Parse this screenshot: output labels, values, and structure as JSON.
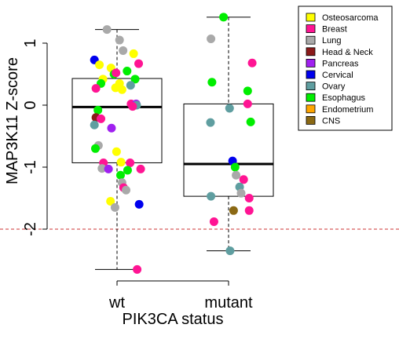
{
  "chart_data": {
    "type": "boxplot-with-jitter",
    "xlabel": "PIK3CA status",
    "ylabel": "MAP3K11 Z-score",
    "ylim": [
      -2.7,
      1.55
    ],
    "yticks": [
      1,
      0,
      -1,
      -2
    ],
    "reference_line": {
      "y": -2,
      "color": "#cc3333",
      "style": "dashed"
    },
    "categories": [
      "wt",
      "mutant"
    ],
    "boxes": [
      {
        "category": "wt",
        "whisker_low": -2.65,
        "q1": -0.93,
        "median": -0.03,
        "q3": 0.43,
        "whisker_high": 1.22
      },
      {
        "category": "mutant",
        "whisker_low": -2.35,
        "q1": -1.47,
        "median": -0.95,
        "q3": 0.02,
        "whisker_high": 1.42
      }
    ],
    "legend": [
      {
        "label": "Osteosarcoma",
        "color": "#ffff00"
      },
      {
        "label": "Breast",
        "color": "#ff1493"
      },
      {
        "label": "Lung",
        "color": "#a9a9a9"
      },
      {
        "label": "Head & Neck",
        "color": "#8b1a1a"
      },
      {
        "label": "Pancreas",
        "color": "#a020f0"
      },
      {
        "label": "Cervical",
        "color": "#0000ee"
      },
      {
        "label": "Ovary",
        "color": "#5f9ea0"
      },
      {
        "label": "Esophagus",
        "color": "#00ee00"
      },
      {
        "label": "Endometrium",
        "color": "#ffa500"
      },
      {
        "label": "CNS",
        "color": "#8b6914"
      }
    ],
    "points": [
      {
        "group": "wt",
        "type": "Lung",
        "jitter": -0.2,
        "y": 1.22
      },
      {
        "group": "wt",
        "type": "Lung",
        "jitter": 0.05,
        "y": 1.05
      },
      {
        "group": "wt",
        "type": "Lung",
        "jitter": 0.12,
        "y": 0.88
      },
      {
        "group": "wt",
        "type": "Osteosarcoma",
        "jitter": 0.33,
        "y": 0.83
      },
      {
        "group": "wt",
        "type": "Cervical",
        "jitter": -0.45,
        "y": 0.73
      },
      {
        "group": "wt",
        "type": "Osteosarcoma",
        "jitter": -0.35,
        "y": 0.65
      },
      {
        "group": "wt",
        "type": "Breast",
        "jitter": 0.43,
        "y": 0.67
      },
      {
        "group": "wt",
        "type": "Osteosarcoma",
        "jitter": -0.12,
        "y": 0.6
      },
      {
        "group": "wt",
        "type": "Esophagus",
        "jitter": 0.2,
        "y": 0.55
      },
      {
        "group": "wt",
        "type": "Esophagus",
        "jitter": -0.06,
        "y": 0.5
      },
      {
        "group": "wt",
        "type": "Breast",
        "jitter": -0.02,
        "y": 0.52
      },
      {
        "group": "wt",
        "type": "Esophagus",
        "jitter": 0.36,
        "y": 0.42
      },
      {
        "group": "wt",
        "type": "Osteosarcoma",
        "jitter": -0.28,
        "y": 0.42
      },
      {
        "group": "wt",
        "type": "Esophagus",
        "jitter": -0.32,
        "y": 0.35
      },
      {
        "group": "wt",
        "type": "Osteosarcoma",
        "jitter": 0.05,
        "y": 0.35
      },
      {
        "group": "wt",
        "type": "Ovary",
        "jitter": 0.27,
        "y": 0.32
      },
      {
        "group": "wt",
        "type": "Osteosarcoma",
        "jitter": -0.03,
        "y": 0.28
      },
      {
        "group": "wt",
        "type": "Breast",
        "jitter": -0.42,
        "y": 0.27
      },
      {
        "group": "wt",
        "type": "Osteosarcoma",
        "jitter": 0.1,
        "y": 0.25
      },
      {
        "group": "wt",
        "type": "Breast",
        "jitter": 0.28,
        "y": 0.02
      },
      {
        "group": "wt",
        "type": "Pancreas",
        "jitter": 0.38,
        "y": 0.02
      },
      {
        "group": "wt",
        "type": "Ovary",
        "jitter": 0.39,
        "y": 0.0
      },
      {
        "group": "wt",
        "type": "Breast",
        "jitter": 0.31,
        "y": -0.02
      },
      {
        "group": "wt",
        "type": "Esophagus",
        "jitter": -0.38,
        "y": -0.08
      },
      {
        "group": "wt",
        "type": "Head & Neck",
        "jitter": -0.42,
        "y": -0.2
      },
      {
        "group": "wt",
        "type": "Breast",
        "jitter": -0.32,
        "y": -0.22
      },
      {
        "group": "wt",
        "type": "Ovary",
        "jitter": -0.45,
        "y": -0.32
      },
      {
        "group": "wt",
        "type": "Pancreas",
        "jitter": -0.11,
        "y": -0.37
      },
      {
        "group": "wt",
        "type": "Lung",
        "jitter": -0.37,
        "y": -0.65
      },
      {
        "group": "wt",
        "type": "Osteosarcoma",
        "jitter": -0.01,
        "y": -0.75
      },
      {
        "group": "wt",
        "type": "Esophagus",
        "jitter": -0.43,
        "y": -0.7
      },
      {
        "group": "wt",
        "type": "Osteosarcoma",
        "jitter": 0.08,
        "y": -0.92
      },
      {
        "group": "wt",
        "type": "Breast",
        "jitter": -0.27,
        "y": -0.93
      },
      {
        "group": "wt",
        "type": "Breast",
        "jitter": 0.26,
        "y": -0.93
      },
      {
        "group": "wt",
        "type": "Lung",
        "jitter": -0.3,
        "y": -1.02
      },
      {
        "group": "wt",
        "type": "Esophagus",
        "jitter": 0.21,
        "y": -1.05
      },
      {
        "group": "wt",
        "type": "Pancreas",
        "jitter": -0.17,
        "y": -1.03
      },
      {
        "group": "wt",
        "type": "Breast",
        "jitter": 0.47,
        "y": -1.03
      },
      {
        "group": "wt",
        "type": "Esophagus",
        "jitter": 0.07,
        "y": -1.13
      },
      {
        "group": "wt",
        "type": "Lung",
        "jitter": 0.1,
        "y": -1.25
      },
      {
        "group": "wt",
        "type": "Breast",
        "jitter": 0.13,
        "y": -1.33
      },
      {
        "group": "wt",
        "type": "Lung",
        "jitter": 0.18,
        "y": -1.37
      },
      {
        "group": "wt",
        "type": "Osteosarcoma",
        "jitter": -0.13,
        "y": -1.55
      },
      {
        "group": "wt",
        "type": "Lung",
        "jitter": -0.04,
        "y": -1.65
      },
      {
        "group": "wt",
        "type": "Cervical",
        "jitter": 0.44,
        "y": -1.6
      },
      {
        "group": "wt",
        "type": "Breast",
        "jitter": 0.4,
        "y": -2.65
      },
      {
        "group": "mutant",
        "type": "Esophagus",
        "jitter": -0.1,
        "y": 1.42
      },
      {
        "group": "mutant",
        "type": "Lung",
        "jitter": -0.35,
        "y": 1.07
      },
      {
        "group": "mutant",
        "type": "Breast",
        "jitter": 0.47,
        "y": 0.68
      },
      {
        "group": "mutant",
        "type": "Esophagus",
        "jitter": -0.33,
        "y": 0.37
      },
      {
        "group": "mutant",
        "type": "Esophagus",
        "jitter": 0.38,
        "y": 0.23
      },
      {
        "group": "mutant",
        "type": "Breast",
        "jitter": 0.38,
        "y": 0.02
      },
      {
        "group": "mutant",
        "type": "Ovary",
        "jitter": 0.02,
        "y": -0.05
      },
      {
        "group": "mutant",
        "type": "Ovary",
        "jitter": -0.36,
        "y": -0.28
      },
      {
        "group": "mutant",
        "type": "Esophagus",
        "jitter": 0.44,
        "y": -0.27
      },
      {
        "group": "mutant",
        "type": "Cervical",
        "jitter": 0.08,
        "y": -0.9
      },
      {
        "group": "mutant",
        "type": "Esophagus",
        "jitter": 0.13,
        "y": -1.0
      },
      {
        "group": "mutant",
        "type": "Lung",
        "jitter": 0.15,
        "y": -1.13
      },
      {
        "group": "mutant",
        "type": "Breast",
        "jitter": 0.3,
        "y": -1.2
      },
      {
        "group": "mutant",
        "type": "Ovary",
        "jitter": 0.22,
        "y": -1.32
      },
      {
        "group": "mutant",
        "type": "Ovary",
        "jitter": -0.35,
        "y": -1.47
      },
      {
        "group": "mutant",
        "type": "Lung",
        "jitter": 0.25,
        "y": -1.42
      },
      {
        "group": "mutant",
        "type": "Breast",
        "jitter": 0.41,
        "y": -1.5
      },
      {
        "group": "mutant",
        "type": "CNS",
        "jitter": 0.1,
        "y": -1.7
      },
      {
        "group": "mutant",
        "type": "Breast",
        "jitter": 0.41,
        "y": -1.7
      },
      {
        "group": "mutant",
        "type": "Breast",
        "jitter": -0.29,
        "y": -1.88
      },
      {
        "group": "mutant",
        "type": "Ovary",
        "jitter": 0.03,
        "y": -2.35
      }
    ]
  }
}
